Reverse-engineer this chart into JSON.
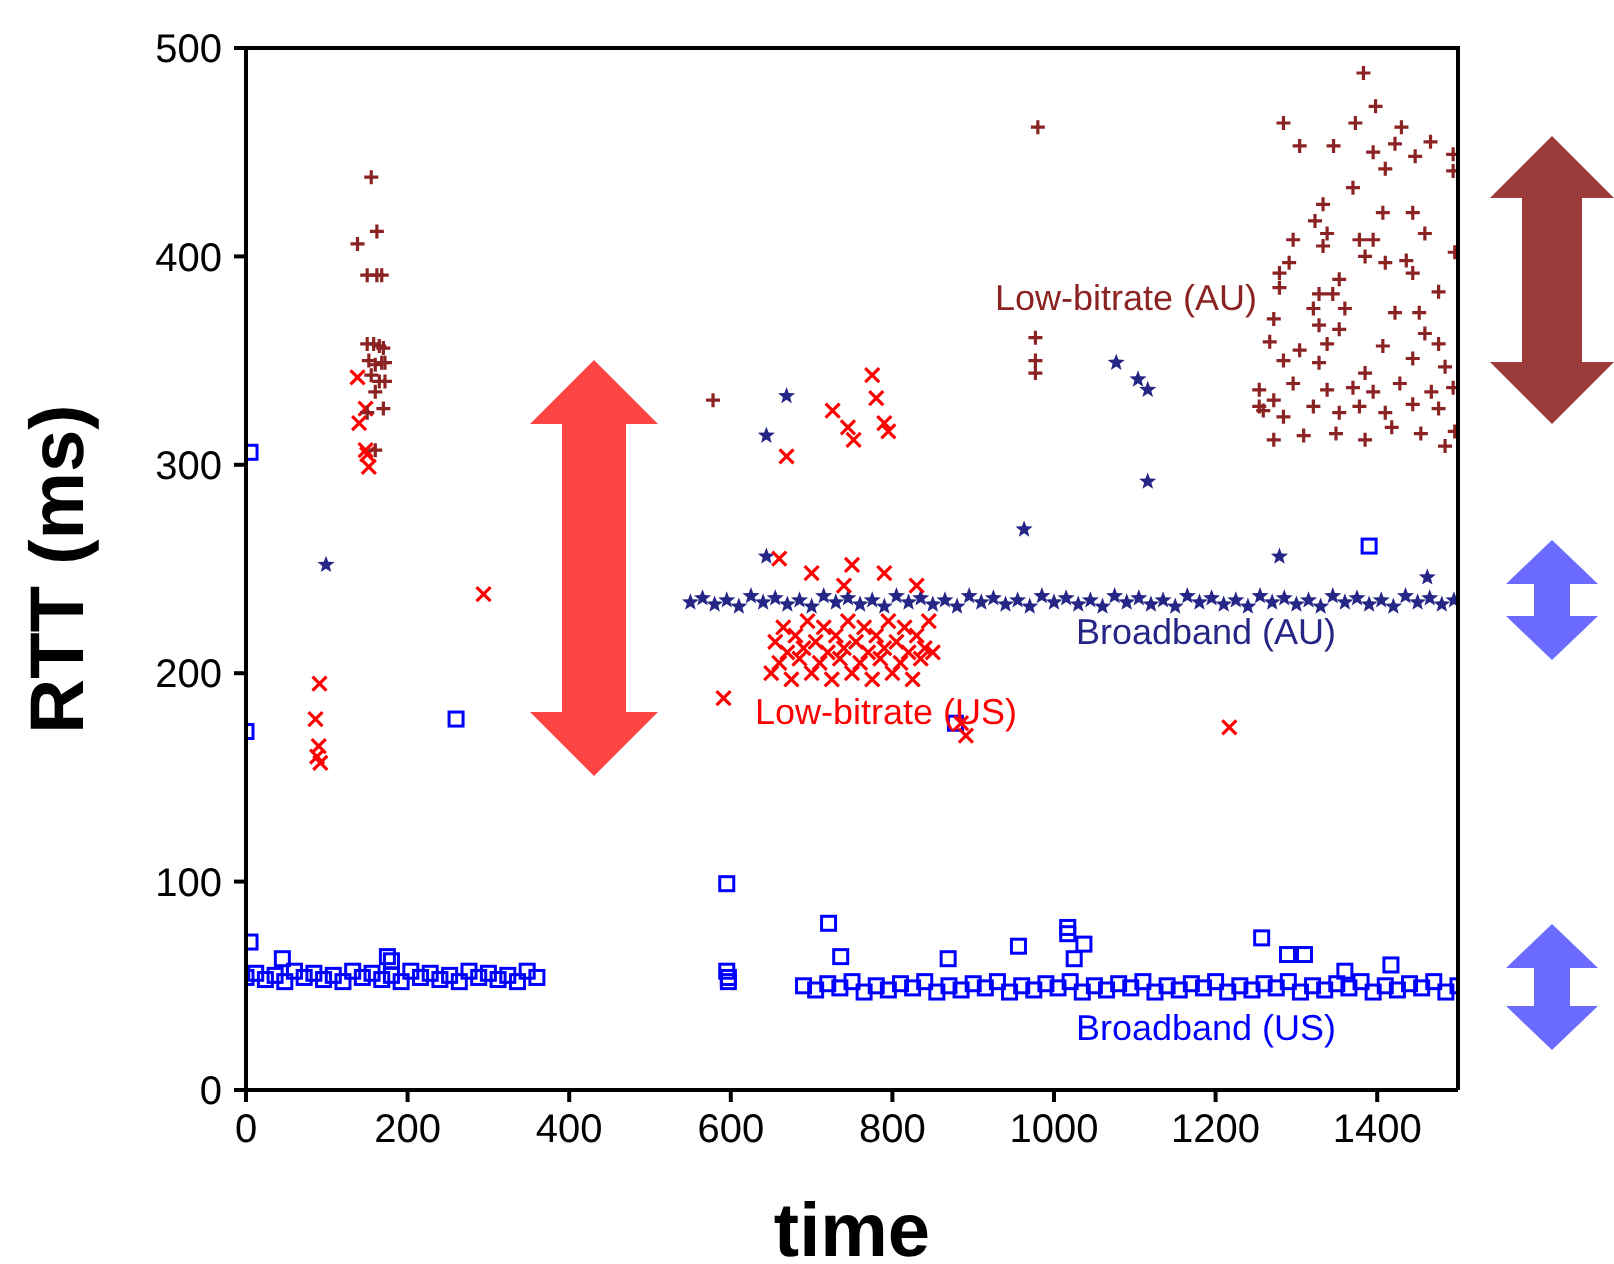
{
  "chart_data": {
    "type": "scatter",
    "xlabel": "time",
    "ylabel": "RTT (ms)",
    "xlim": [
      0,
      1500
    ],
    "ylim": [
      0,
      500
    ],
    "xticks": [
      0,
      200,
      400,
      600,
      800,
      1000,
      1200,
      1400
    ],
    "yticks": [
      0,
      100,
      200,
      300,
      400,
      500
    ],
    "grid": false,
    "legend": false,
    "series": [
      {
        "name": "Broadband (US)",
        "color": "#0000ff",
        "marker": "square",
        "x": [
          0,
          12,
          24,
          36,
          48,
          60,
          72,
          84,
          96,
          108,
          120,
          132,
          144,
          156,
          168,
          180,
          192,
          204,
          216,
          228,
          240,
          252,
          264,
          276,
          288,
          300,
          312,
          324,
          336,
          348,
          360,
          0,
          5,
          5,
          45,
          175,
          180,
          260,
          595,
          595,
          597,
          597,
          690,
          705,
          720,
          735,
          750,
          765,
          780,
          795,
          810,
          825,
          840,
          855,
          870,
          885,
          900,
          915,
          930,
          945,
          960,
          975,
          990,
          1005,
          1020,
          1035,
          1050,
          1065,
          1080,
          1095,
          1110,
          1125,
          1140,
          1155,
          1170,
          1185,
          1200,
          1215,
          1230,
          1245,
          1260,
          1275,
          1290,
          1305,
          1320,
          1335,
          1350,
          1365,
          1380,
          1395,
          1410,
          1425,
          1440,
          1455,
          1470,
          1485,
          1500,
          721,
          736,
          869,
          956,
          1017,
          1017,
          1037,
          1025,
          1257,
          1289,
          1310,
          1417,
          1360,
          878,
          1390
        ],
        "values": [
          54,
          56,
          53,
          55,
          52,
          57,
          54,
          56,
          53,
          55,
          52,
          57,
          54,
          56,
          53,
          55,
          52,
          57,
          54,
          56,
          53,
          55,
          52,
          57,
          54,
          56,
          53,
          55,
          52,
          57,
          54,
          172,
          306,
          71,
          63,
          64,
          62,
          178,
          99,
          57,
          54,
          52,
          50,
          48,
          51,
          49,
          52,
          47,
          50,
          48,
          51,
          49,
          52,
          47,
          50,
          48,
          51,
          49,
          52,
          47,
          50,
          48,
          51,
          49,
          52,
          47,
          50,
          48,
          51,
          49,
          52,
          47,
          50,
          48,
          51,
          49,
          52,
          47,
          50,
          48,
          51,
          49,
          52,
          47,
          50,
          48,
          51,
          49,
          52,
          47,
          50,
          48,
          51,
          49,
          52,
          47,
          50,
          80,
          64,
          63,
          69,
          78,
          75,
          70,
          63,
          73,
          65,
          65,
          60,
          57,
          176,
          261
        ]
      },
      {
        "name": "Broadband (AU)",
        "color": "#262686",
        "marker": "star",
        "x": [
          550,
          565,
          580,
          595,
          610,
          625,
          640,
          655,
          670,
          685,
          700,
          715,
          730,
          745,
          760,
          775,
          790,
          805,
          820,
          835,
          850,
          865,
          880,
          895,
          910,
          925,
          940,
          955,
          970,
          985,
          1000,
          1015,
          1030,
          1045,
          1060,
          1075,
          1090,
          1105,
          1120,
          1135,
          1150,
          1165,
          1180,
          1195,
          1210,
          1225,
          1240,
          1255,
          1270,
          1285,
          1300,
          1315,
          1330,
          1345,
          1360,
          1375,
          1390,
          1405,
          1420,
          1435,
          1450,
          1465,
          1480,
          1495,
          99,
          644,
          669,
          644,
          1077,
          1104,
          1116,
          1116,
          963,
          1279,
          1462
        ],
        "values": [
          234,
          236,
          233,
          235,
          232,
          237,
          234,
          236,
          233,
          235,
          232,
          237,
          234,
          236,
          233,
          235,
          232,
          237,
          234,
          236,
          233,
          235,
          232,
          237,
          234,
          236,
          233,
          235,
          232,
          237,
          234,
          236,
          233,
          235,
          232,
          237,
          234,
          236,
          233,
          235,
          232,
          237,
          234,
          236,
          233,
          235,
          232,
          237,
          234,
          236,
          233,
          235,
          232,
          237,
          234,
          236,
          233,
          235,
          232,
          237,
          234,
          236,
          233,
          235,
          252,
          314,
          333,
          256,
          349,
          341,
          336,
          292,
          269,
          256,
          246
        ]
      },
      {
        "name": "Low-bitrate (US)",
        "color": "#ff0000",
        "marker": "cross",
        "x": [
          650,
          655,
          660,
          665,
          670,
          675,
          680,
          685,
          690,
          695,
          700,
          705,
          710,
          715,
          720,
          725,
          730,
          735,
          740,
          745,
          750,
          755,
          760,
          765,
          770,
          775,
          780,
          785,
          790,
          795,
          800,
          805,
          810,
          815,
          820,
          825,
          830,
          835,
          840,
          845,
          850,
          138,
          148,
          140,
          148,
          152,
          150,
          91,
          86,
          90,
          88,
          92,
          294,
          669,
          660,
          726,
          745,
          752,
          775,
          780,
          790,
          795,
          591,
          891,
          885,
          1217,
          700,
          750,
          790,
          740,
          830
        ],
        "values": [
          200,
          215,
          205,
          222,
          210,
          197,
          218,
          207,
          212,
          225,
          200,
          215,
          205,
          222,
          210,
          197,
          218,
          207,
          212,
          225,
          200,
          215,
          205,
          222,
          210,
          197,
          218,
          207,
          212,
          225,
          200,
          215,
          205,
          222,
          210,
          197,
          218,
          207,
          212,
          225,
          210,
          342,
          327,
          320,
          307,
          299,
          305,
          195,
          178,
          165,
          160,
          157,
          238,
          304,
          255,
          326,
          318,
          312,
          343,
          332,
          320,
          316,
          188,
          170,
          176,
          174,
          248,
          252,
          248,
          242,
          242
        ]
      },
      {
        "name": "Low-bitrate (AU)",
        "color": "#8b2323",
        "marker": "plus",
        "x": [
          155,
          138,
          162,
          150,
          162,
          168,
          150,
          158,
          165,
          170,
          152,
          160,
          168,
          172,
          155,
          165,
          172,
          160,
          170,
          150,
          160,
          578,
          980,
          977,
          977,
          977,
          1383,
          1398,
          1284,
          1373,
          1430,
          1304,
          1346,
          1395,
          1422,
          1447,
          1466,
          1494,
          1494,
          1410,
          1370,
          1333,
          1323,
          1407,
          1444,
          1338,
          1459,
          1296,
          1333,
          1378,
          1395,
          1496,
          1385,
          1410,
          1436,
          1291,
          1279,
          1444,
          1353,
          1476,
          1328,
          1345,
          1279,
          1321,
          1360,
          1422,
          1452,
          1272,
          1328,
          1353,
          1459,
          1304,
          1267,
          1407,
          1476,
          1338,
          1284,
          1328,
          1444,
          1484,
          1385,
          1254,
          1272,
          1296,
          1338,
          1370,
          1395,
          1428,
          1467,
          1494,
          1259,
          1284,
          1321,
          1353,
          1378,
          1410,
          1444,
          1476,
          1272,
          1309,
          1349,
          1385,
          1418,
          1454,
          1484,
          1496,
          1254
        ],
        "values": [
          438,
          406,
          412,
          391,
          391,
          391,
          358,
          358,
          357,
          356,
          350,
          348,
          349,
          349,
          343,
          340,
          340,
          335,
          327,
          325,
          307,
          331,
          462,
          361,
          350,
          344,
          488,
          472,
          464,
          464,
          462,
          453,
          453,
          450,
          454,
          448,
          455,
          449,
          441,
          442,
          433,
          425,
          417,
          421,
          421,
          411,
          411,
          408,
          405,
          408,
          408,
          402,
          400,
          397,
          398,
          397,
          392,
          392,
          389,
          383,
          382,
          382,
          385,
          375,
          375,
          373,
          373,
          370,
          367,
          365,
          363,
          355,
          359,
          357,
          358,
          358,
          350,
          349,
          351,
          347,
          344,
          336,
          331,
          339,
          336,
          337,
          335,
          339,
          335,
          337,
          326,
          323,
          328,
          325,
          328,
          325,
          329,
          327,
          312,
          314,
          315,
          312,
          318,
          315,
          309,
          316,
          328
        ]
      }
    ]
  }
}
